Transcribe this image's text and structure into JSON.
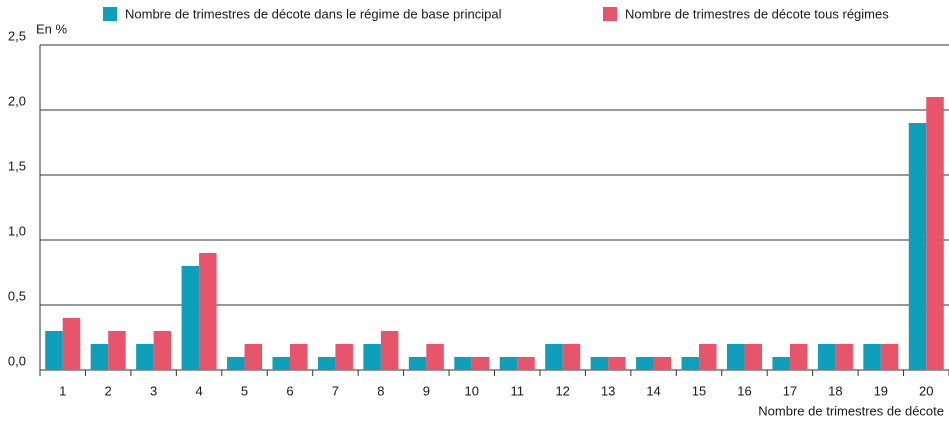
{
  "chart_data": {
    "type": "bar",
    "y_label": "En %",
    "x_label": "Nombre de trimestres de décote",
    "categories": [
      "1",
      "2",
      "3",
      "4",
      "5",
      "6",
      "7",
      "8",
      "9",
      "10",
      "11",
      "12",
      "13",
      "14",
      "15",
      "16",
      "17",
      "18",
      "19",
      "20"
    ],
    "series": [
      {
        "name": "Nombre de trimestres de décote dans le régime de base principal",
        "color": "#0e9fba",
        "values": [
          0.3,
          0.2,
          0.2,
          0.8,
          0.1,
          0.1,
          0.1,
          0.2,
          0.1,
          0.1,
          0.1,
          0.2,
          0.1,
          0.1,
          0.1,
          0.2,
          0.1,
          0.2,
          0.2,
          1.9
        ]
      },
      {
        "name": "Nombre de trimestres de décote tous régimes",
        "color": "#e8546a",
        "values": [
          0.4,
          0.3,
          0.3,
          0.9,
          0.2,
          0.2,
          0.2,
          0.3,
          0.2,
          0.1,
          0.1,
          0.2,
          0.1,
          0.1,
          0.2,
          0.2,
          0.2,
          0.2,
          0.2,
          2.1
        ]
      }
    ],
    "ylim": [
      0,
      2.5
    ],
    "yticks": [
      {
        "value": 0,
        "label": "0,0"
      },
      {
        "value": 0.5,
        "label": "0,5"
      },
      {
        "value": 1,
        "label": "1,0"
      },
      {
        "value": 1.5,
        "label": "1,5"
      },
      {
        "value": 2,
        "label": "2,0"
      },
      {
        "value": 2.5,
        "label": "2,5"
      }
    ],
    "grid": true
  }
}
